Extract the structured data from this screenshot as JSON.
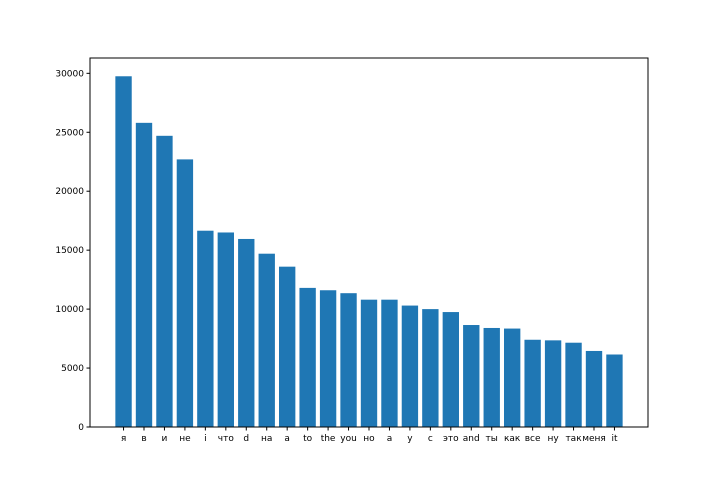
{
  "chart_data": {
    "type": "bar",
    "categories": [
      "я",
      "в",
      "и",
      "не",
      "i",
      "что",
      "d",
      "на",
      "a",
      "to",
      "the",
      "you",
      "но",
      "а",
      "у",
      "с",
      "это",
      "and",
      "ты",
      "как",
      "все",
      "ну",
      "так",
      "меня",
      "it"
    ],
    "values": [
      29750,
      25800,
      24700,
      22700,
      16650,
      16500,
      15950,
      14700,
      13600,
      11800,
      11600,
      11350,
      10800,
      10800,
      10300,
      10000,
      9750,
      8650,
      8400,
      8350,
      7400,
      7350,
      7150,
      6450,
      6150
    ],
    "ylim": [
      0,
      31300
    ],
    "yticks": [
      0,
      5000,
      10000,
      15000,
      20000,
      25000,
      30000
    ],
    "bar_color": "#1f77b4",
    "grid": false,
    "legend": "none"
  }
}
